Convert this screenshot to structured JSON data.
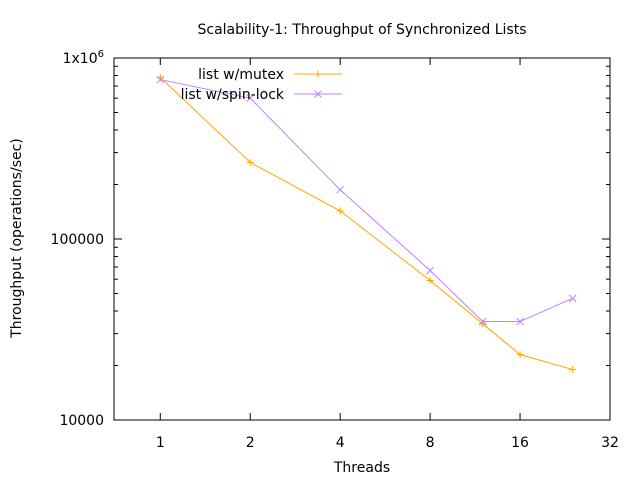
{
  "chart_data": {
    "type": "line",
    "title": "Scalability-1: Throughput of Synchronized Lists",
    "xlabel": "Threads",
    "ylabel": "Throughput (operations/sec)",
    "x_scale": "log2",
    "y_scale": "log10",
    "xlim": [
      0.7,
      32
    ],
    "ylim": [
      10000,
      1000000
    ],
    "x_ticks": [
      {
        "value": 1,
        "label": "1"
      },
      {
        "value": 2,
        "label": "2"
      },
      {
        "value": 4,
        "label": "4"
      },
      {
        "value": 8,
        "label": "8"
      },
      {
        "value": 16,
        "label": "16"
      },
      {
        "value": 32,
        "label": "32"
      }
    ],
    "y_ticks": [
      {
        "value": 10000,
        "label": "10000",
        "sup": ""
      },
      {
        "value": 100000,
        "label": "100000",
        "sup": ""
      },
      {
        "value": 1000000,
        "label": "1x10",
        "sup": "6"
      }
    ],
    "legend_position": "top-left",
    "grid": false,
    "series": [
      {
        "name": "list w/mutex",
        "color": "#ffa500",
        "marker": "plus",
        "x": [
          1,
          2,
          4,
          8,
          12,
          16,
          24
        ],
        "y": [
          780000,
          265000,
          143000,
          59000,
          34000,
          23000,
          19000
        ]
      },
      {
        "name": "list w/spin-lock",
        "color": "#c080ff",
        "marker": "cross",
        "x": [
          1,
          2,
          4,
          8,
          12,
          16,
          24
        ],
        "y": [
          760000,
          600000,
          187000,
          67000,
          35000,
          35000,
          47000
        ]
      }
    ]
  }
}
